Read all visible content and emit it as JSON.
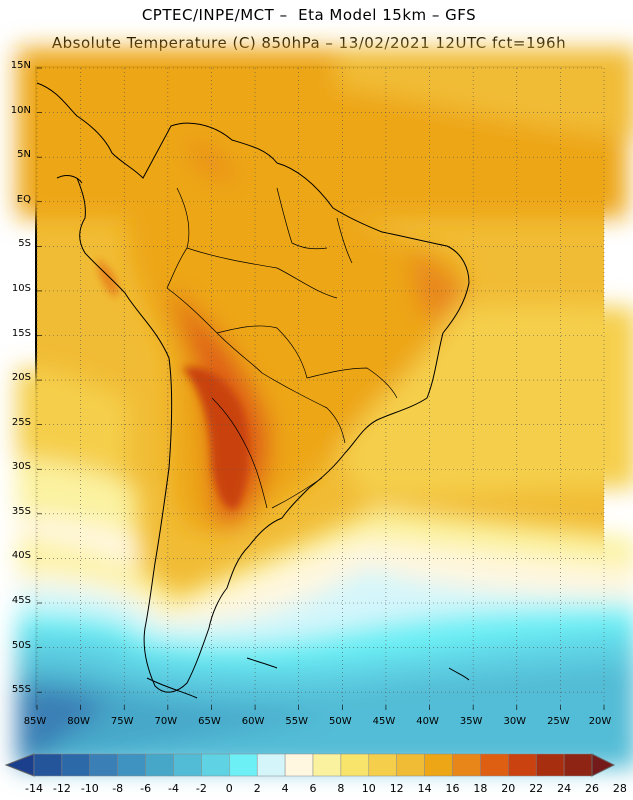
{
  "title": {
    "line1": "CPTEC/INPE/MCT –  Eta Model 15km – GFS",
    "line2": "Absolute Temperature (C) 850hPa – 13/02/2021 12UTC fct=196h"
  },
  "map": {
    "lat_labels": [
      "15N",
      "10N",
      "5N",
      "EQ",
      "5S",
      "10S",
      "15S",
      "20S",
      "25S",
      "30S",
      "35S",
      "40S",
      "45S",
      "50S",
      "55S"
    ],
    "lon_labels": [
      "85W",
      "80W",
      "75W",
      "70W",
      "65W",
      "60W",
      "55W",
      "50W",
      "45W",
      "40W",
      "35W",
      "30W",
      "25W",
      "20W"
    ],
    "lat_range": [
      15,
      -57
    ],
    "lon_range": [
      -85,
      -20
    ],
    "grid": "dotted"
  },
  "colorbar": {
    "ticks": [
      "-14",
      "-12",
      "-10",
      "-8",
      "-6",
      "-4",
      "-2",
      "0",
      "2",
      "4",
      "6",
      "8",
      "10",
      "12",
      "14",
      "16",
      "18",
      "20",
      "22",
      "24",
      "26",
      "28"
    ],
    "colors": [
      "#1b3f8c",
      "#24559b",
      "#2c69a8",
      "#3a7fb5",
      "#3f93c0",
      "#46a7c9",
      "#52bcd6",
      "#5fd2e4",
      "#6cf0f5",
      "#d4f6fb",
      "#fff7df",
      "#fbf2a0",
      "#f9e46b",
      "#f5cf4c",
      "#f1bc35",
      "#eda616",
      "#e8861a",
      "#df5f12",
      "#c9420f",
      "#a82e10",
      "#8e2414",
      "#741a1a"
    ],
    "units": "C"
  }
}
